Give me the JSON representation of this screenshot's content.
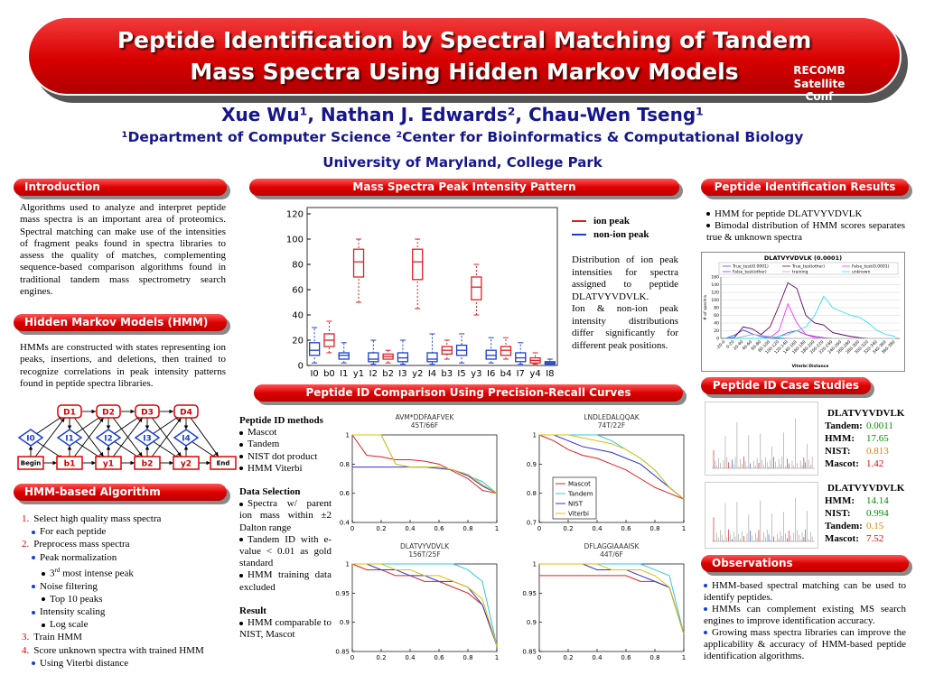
{
  "header": {
    "title": [
      "Peptide Identification by Spectral Matching of Tandem",
      "Mass Spectra Using Hidden Markov Models"
    ],
    "conference": [
      "RECOMB",
      "Satellite Conf"
    ],
    "authors": "Xue Wu¹, Nathan J. Edwards², Chau-Wen Tseng¹",
    "affiliations": "¹Department of Computer Science ²Center for Bioinformatics & Computational Biology",
    "university": "University of Maryland, College Park"
  },
  "introduction": {
    "title": "Introduction",
    "text": "Algorithms used to analyze and interpret peptide mass spectra is an important area of proteomics. Spectral matching can make use of the intensities of fragment peaks found in spectra libraries to assess the quality of matches, complementing sequence-based comparison algorithms found in traditional tandem mass spectrometry search engines."
  },
  "hmm": {
    "title": "Hidden Markov Models (HMM)",
    "text": "HMMs are constructed with states representing ion peaks, insertions, and deletions, then trained to recognize correlations in peak intensity patterns found in peptide spectra libraries.",
    "diagram": {
      "delete_states": [
        "D1",
        "D2",
        "D3",
        "D4"
      ],
      "insert_states": [
        "I0",
        "I1",
        "I2",
        "I3",
        "I4"
      ],
      "match_states": [
        "Begin",
        "b1",
        "y1",
        "b2",
        "y2",
        "End"
      ]
    }
  },
  "algorithm": {
    "title": "HMM-based Algorithm",
    "items": [
      {
        "marker": "1.",
        "text": "Select high quality mass spectra",
        "level": 0
      },
      {
        "text": "For each peptide",
        "level": 1
      },
      {
        "marker": "2.",
        "text": "Preprocess mass spectra",
        "level": 0
      },
      {
        "text": "Peak normalization",
        "level": 1
      },
      {
        "text": "3",
        "sup": "rd",
        "rest": " most intense peak",
        "level": 2
      },
      {
        "text": "Noise filtering",
        "level": 1
      },
      {
        "text": "Top 10 peaks",
        "level": 2
      },
      {
        "text": "Intensity scaling",
        "level": 1
      },
      {
        "text": "Log scale",
        "level": 2
      },
      {
        "marker": "3.",
        "text": "Train HMM",
        "level": 0
      },
      {
        "marker": "4.",
        "text": "Score unknown spectra with trained HMM",
        "level": 0
      },
      {
        "text": "Using Viterbi distance",
        "level": 1
      }
    ]
  },
  "mass_spectra": {
    "title": "Mass Spectra Peak Intensity Pattern",
    "description": [
      "Distribution of ion peak intensities for spectra assigned to peptide DLATVYVDVLK.",
      "Ion & non-ion peak intensity distributions differ significantly for different peak positions."
    ],
    "chart": {
      "type": "box",
      "categories": [
        "I0",
        "b0",
        "I1",
        "y1",
        "I2",
        "b2",
        "I3",
        "y2",
        "I4",
        "b3",
        "I5",
        "y3",
        "I6",
        "b4",
        "I7",
        "y4",
        "I8"
      ],
      "ylim": [
        0,
        125
      ],
      "yticks": [
        0,
        20,
        40,
        60,
        80,
        100,
        120
      ],
      "series": [
        {
          "name": "ion peak",
          "color": "#e02020",
          "values": [
            null,
            [
              10,
              15,
              20,
              25,
              35
            ],
            null,
            [
              50,
              70,
              82,
              92,
              100
            ],
            null,
            [
              2,
              5,
              7,
              9,
              12
            ],
            null,
            [
              45,
              68,
              82,
              92,
              100
            ],
            null,
            [
              5,
              9,
              12,
              15,
              20
            ],
            null,
            [
              40,
              52,
              62,
              70,
              80
            ],
            null,
            [
              5,
              8,
              12,
              15,
              22
            ],
            null,
            [
              1,
              2,
              4,
              6,
              10
            ],
            null
          ]
        },
        {
          "name": "non-ion peak",
          "color": "#1a3fd0",
          "values": [
            [
              2,
              8,
              12,
              18,
              30
            ],
            null,
            [
              2,
              5,
              8,
              10,
              18
            ],
            null,
            [
              1,
              3,
              5,
              10,
              20
            ],
            null,
            [
              1,
              3,
              6,
              10,
              20
            ],
            null,
            [
              1,
              3,
              5,
              10,
              25
            ],
            null,
            [
              2,
              8,
              12,
              16,
              25
            ],
            null,
            [
              2,
              5,
              8,
              12,
              22
            ],
            null,
            [
              1,
              3,
              6,
              10,
              18
            ],
            null,
            [
              1,
              1,
              2,
              3,
              5
            ]
          ]
        }
      ]
    }
  },
  "pr": {
    "title": "Peptide ID Comparison Using Precision-Recall Curves",
    "groups": [
      {
        "heading": "Peptide ID methods",
        "items": [
          "Mascot",
          "Tandem",
          "NIST dot product",
          "HMM Viterbi"
        ]
      },
      {
        "heading": "Data Selection",
        "items": [
          "Spectra w/ parent ion mass within ±2 Dalton range",
          "Tandem ID with e-value < 0.01 as gold standard",
          "HMM training data excluded"
        ]
      },
      {
        "heading": "Result",
        "items": [
          "HMM comparable to NIST, Mascot"
        ]
      }
    ],
    "charts": [
      {
        "type": "line",
        "title": "AVM*DDFAAFVEK",
        "subtitle": "45T/66F",
        "x": [
          0,
          0.1,
          0.2,
          0.3,
          0.4,
          0.5,
          0.6,
          0.7,
          0.8,
          0.9,
          1
        ],
        "xlim": [
          0,
          1
        ],
        "xticks": [
          0,
          0.2,
          0.4,
          0.6,
          0.8,
          1
        ],
        "ylim": [
          0.4,
          1
        ],
        "yticks": [
          0.4,
          0.6,
          0.8,
          1
        ],
        "series": [
          {
            "name": "Mascot",
            "color": "#e02020",
            "values": [
              1,
              0.86,
              0.85,
              0.83,
              0.83,
              0.82,
              0.8,
              0.75,
              0.7,
              0.62,
              0.6
            ]
          },
          {
            "name": "Tandem",
            "color": "#30c8e0",
            "values": [
              1,
              1,
              1,
              0.8,
              0.78,
              0.78,
              0.78,
              0.76,
              0.72,
              0.68,
              0.6
            ]
          },
          {
            "name": "NIST",
            "color": "#3030d0",
            "values": [
              0.78,
              0.78,
              0.78,
              0.78,
              0.78,
              0.78,
              0.77,
              0.76,
              0.72,
              0.65,
              0.6
            ]
          },
          {
            "name": "Viterbi",
            "color": "#e0c000",
            "values": [
              1,
              1,
              1,
              0.8,
              0.78,
              0.78,
              0.78,
              0.76,
              0.73,
              0.66,
              0.6
            ]
          }
        ]
      },
      {
        "type": "line",
        "title": "LNDLEDALQQAK",
        "subtitle": "74T/22F",
        "x": [
          0,
          0.1,
          0.2,
          0.3,
          0.4,
          0.5,
          0.6,
          0.7,
          0.8,
          0.9,
          1
        ],
        "xlim": [
          0,
          1
        ],
        "xticks": [
          0,
          0.2,
          0.4,
          0.6,
          0.8,
          1
        ],
        "ylim": [
          0.7,
          1
        ],
        "yticks": [
          0.7,
          0.8,
          0.9,
          1
        ],
        "legend": "lower left",
        "series": [
          {
            "name": "Mascot",
            "color": "#e02020",
            "values": [
              1,
              0.98,
              0.95,
              0.93,
              0.92,
              0.9,
              0.88,
              0.85,
              0.82,
              0.8,
              0.78
            ]
          },
          {
            "name": "Tandem",
            "color": "#30c8e0",
            "values": [
              1,
              1,
              1,
              1,
              1,
              0.98,
              0.95,
              0.92,
              0.88,
              0.82,
              0.78
            ]
          },
          {
            "name": "NIST",
            "color": "#3030d0",
            "values": [
              1,
              1,
              0.98,
              0.96,
              0.95,
              0.94,
              0.92,
              0.9,
              0.86,
              0.82,
              0.78
            ]
          },
          {
            "name": "Viterbi",
            "color": "#e0c000",
            "values": [
              1,
              1,
              1,
              0.99,
              0.98,
              0.97,
              0.95,
              0.92,
              0.88,
              0.82,
              0.78
            ]
          }
        ]
      },
      {
        "type": "line",
        "title": "DLATVYVDVLK",
        "subtitle": "156T/25F",
        "x": [
          0,
          0.1,
          0.2,
          0.3,
          0.4,
          0.5,
          0.6,
          0.7,
          0.8,
          0.9,
          1
        ],
        "xlim": [
          0,
          1
        ],
        "xticks": [
          0,
          0.2,
          0.4,
          0.6,
          0.8,
          1
        ],
        "ylim": [
          0.85,
          1
        ],
        "yticks": [
          0.85,
          0.9,
          0.95,
          1
        ],
        "series": [
          {
            "name": "Mascot",
            "color": "#e02020",
            "values": [
              1,
              0.99,
              0.99,
              0.98,
              0.98,
              0.97,
              0.97,
              0.96,
              0.95,
              0.93,
              0.86
            ]
          },
          {
            "name": "Tandem",
            "color": "#30c8e0",
            "values": [
              1,
              1,
              1,
              1,
              1,
              1,
              1,
              1,
              0.99,
              0.97,
              0.86
            ]
          },
          {
            "name": "NIST",
            "color": "#3030d0",
            "values": [
              1,
              1,
              0.99,
              0.99,
              0.98,
              0.98,
              0.97,
              0.97,
              0.96,
              0.93,
              0.86
            ]
          },
          {
            "name": "Viterbi",
            "color": "#e0c000",
            "values": [
              1,
              1,
              1,
              0.99,
              0.99,
              0.98,
              0.98,
              0.97,
              0.96,
              0.94,
              0.86
            ]
          }
        ]
      },
      {
        "type": "line",
        "title": "DFLAGGIAAAISK",
        "subtitle": "44T/6F",
        "x": [
          0,
          0.1,
          0.2,
          0.3,
          0.4,
          0.5,
          0.6,
          0.7,
          0.8,
          0.9,
          1
        ],
        "xlim": [
          0,
          1
        ],
        "xticks": [
          0,
          0.2,
          0.4,
          0.6,
          0.8,
          1
        ],
        "ylim": [
          0.85,
          1
        ],
        "yticks": [
          0.85,
          0.9,
          0.95,
          1
        ],
        "series": [
          {
            "name": "Mascot",
            "color": "#e02020",
            "values": [
              0.98,
              0.98,
              0.98,
              0.98,
              0.98,
              0.98,
              0.98,
              0.97,
              0.97,
              0.96,
              0.88
            ]
          },
          {
            "name": "Tandem",
            "color": "#30c8e0",
            "values": [
              1,
              1,
              1,
              1,
              1,
              1,
              1,
              1,
              0.99,
              0.98,
              0.88
            ]
          },
          {
            "name": "NIST",
            "color": "#3030d0",
            "values": [
              1,
              1,
              1,
              1,
              0.99,
              0.99,
              0.99,
              0.98,
              0.97,
              0.96,
              0.88
            ]
          },
          {
            "name": "Viterbi",
            "color": "#e0c000",
            "values": [
              1,
              1,
              1,
              1,
              1,
              0.99,
              0.99,
              0.99,
              0.98,
              0.96,
              0.88
            ]
          }
        ]
      }
    ]
  },
  "results": {
    "title": "Peptide Identification Results",
    "bullets": [
      "HMM for peptide DLATVYVDVLK",
      "Bimodal distribution of HMM scores separates true & unknown spectra"
    ],
    "chart": {
      "type": "line",
      "title": "DLATVYVDVLK (0.0001)",
      "x_label": "Viterbi Distance",
      "y_label": "# of spectra",
      "grid": true,
      "categories": [
        "-20-0",
        "0-20",
        "20-40",
        "40-60",
        "60-80",
        "80-100",
        "100-120",
        "120-140",
        "140-160",
        "160-180",
        "180-200",
        "200-220",
        "220-240",
        "240-260",
        "260-280",
        "280-300",
        "300-320",
        "320-340",
        "340-360",
        "360-380"
      ],
      "ylim": [
        0,
        160
      ],
      "yticks": [
        0,
        20,
        40,
        60,
        80,
        100,
        120,
        140,
        160
      ],
      "series": [
        {
          "name": "True_test(0.0001)",
          "color": "#3050ff",
          "values": [
            0,
            8,
            22,
            12,
            5,
            2,
            0,
            0,
            0,
            0,
            0,
            0,
            0,
            0,
            0,
            0,
            0,
            0,
            0,
            0
          ]
        },
        {
          "name": "True_test(other)",
          "color": "#600060",
          "values": [
            0,
            2,
            30,
            25,
            10,
            30,
            85,
            145,
            130,
            60,
            40,
            35,
            15,
            10,
            5,
            2,
            0,
            0,
            0,
            0
          ]
        },
        {
          "name": "False_test(0.0001)",
          "color": "#ff30ff",
          "values": [
            0,
            0,
            0,
            0,
            0,
            2,
            20,
            90,
            40,
            10,
            2,
            0,
            0,
            0,
            0,
            0,
            0,
            0,
            0,
            0
          ]
        },
        {
          "name": "False_test(other)",
          "color": "#9933cc",
          "values": [
            0,
            0,
            0,
            0,
            0,
            0,
            5,
            15,
            20,
            10,
            5,
            2,
            0,
            0,
            0,
            0,
            0,
            0,
            0,
            0
          ]
        },
        {
          "name": "training",
          "color": "#b0b0b0",
          "values": [
            0,
            0,
            5,
            10,
            8,
            5,
            2,
            0,
            0,
            0,
            0,
            0,
            0,
            0,
            0,
            0,
            0,
            0,
            0,
            0
          ]
        },
        {
          "name": "unknown",
          "color": "#30e0f0",
          "values": [
            0,
            0,
            0,
            0,
            0,
            0,
            5,
            10,
            20,
            30,
            60,
            110,
            80,
            70,
            60,
            55,
            40,
            20,
            10,
            5
          ]
        }
      ]
    }
  },
  "case": {
    "title": "Peptide ID Case Studies",
    "blocks": [
      {
        "peptide": "DLATVYVDVLK",
        "scores": [
          {
            "label": "Tandem:",
            "value": "0.0011",
            "color": "#009000"
          },
          {
            "label": "HMM:",
            "value": "17.65",
            "color": "#009000"
          },
          {
            "label": "NIST:",
            "value": "0.813",
            "color": "#e08000"
          },
          {
            "label": "Mascot:",
            "value": "1.42",
            "color": "#e00000"
          }
        ]
      },
      {
        "peptide": "DLATVYVDVLK",
        "scores": [
          {
            "label": "HMM:",
            "value": "14.14",
            "color": "#009000"
          },
          {
            "label": "NIST:",
            "value": "0.994",
            "color": "#009000"
          },
          {
            "label": "Tandem:",
            "value": "0.15",
            "color": "#e08000"
          },
          {
            "label": "Mascot:",
            "value": "7.52",
            "color": "#e00000"
          }
        ]
      }
    ]
  },
  "observations": {
    "title": "Observations",
    "bullets": [
      "HMM-based spectral matching can be used to identify peptides.",
      "HMMs can complement existing MS search engines to improve identification accuracy.",
      "Growing mass spectra libraries can improve the applicability & accuracy of HMM-based peptide identification algorithms."
    ]
  }
}
